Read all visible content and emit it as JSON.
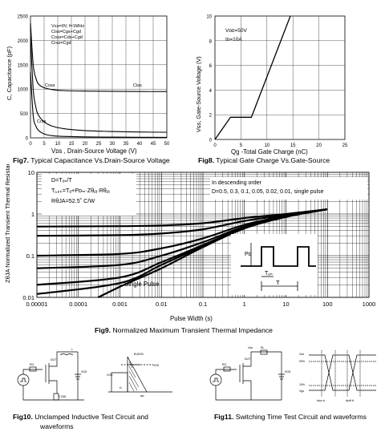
{
  "fig7": {
    "caption_num": "Fig7.",
    "caption_text": " Typical Capacitance Vs.Drain-Source Voltage",
    "ylabel": "C, Capacitance (pF)",
    "xlabel": "Vᴅs , Drain-Source Voltage (V)",
    "yticks": [
      "0",
      "500",
      "1000",
      "1500",
      "2000",
      "2500"
    ],
    "xticks": [
      "0",
      "5",
      "10",
      "15",
      "20",
      "25",
      "30",
      "35",
      "40",
      "45",
      "50"
    ],
    "legend": [
      "Vɢs=0V, f=1MHz",
      "Ciss=Cgs+Cgd",
      "Coss=Cds+Cgd",
      "Crss=Cgd"
    ],
    "series_labels": [
      "Ciss",
      "Coss",
      "Crss"
    ]
  },
  "fig8": {
    "caption_num": "Fig8.",
    "caption_text": " Typical Gate Charge Vs.Gate-Source",
    "ylabel": "Vɢs, Gate-Source Voltage (V)",
    "xlabel": "Qg -Total Gate Charge (nC)",
    "yticks": [
      "0",
      "2",
      "4",
      "6",
      "8",
      "10"
    ],
    "xticks": [
      "0",
      "5",
      "10",
      "15",
      "20",
      "25"
    ],
    "legend": [
      "Vᴅᴅ=50V",
      "Iᴅ=10A"
    ]
  },
  "fig9": {
    "caption_num": "Fig9.",
    "caption_text": " Normalized Maximum Transient Thermal Impedance",
    "ylabel": "ZθJA Normalized Transient Thermal Resistance)",
    "xlabel": "Pulse Width (s)",
    "yticks": [
      "10",
      "1",
      "0.1",
      "0.01"
    ],
    "xticks": [
      "0.00001",
      "0.0001",
      "0.001",
      "0.01",
      "0.1",
      "1",
      "10",
      "100",
      "1000"
    ],
    "notes_left": [
      "D=Tₒₙ/T",
      "Tⱼ,ₚₖ=Tₐ+Pᴅₘ·Zθⱼₐ·Rθⱼₐ",
      "RθJA=52.5˚ C/W"
    ],
    "notes_right": [
      "In descending order",
      "D=0.5, 0.3, 0.1, 0.05, 0.02, 0.01, single pulse"
    ],
    "single_pulse_label": "Single Pulse",
    "pulse_labels": [
      "Pᴅ",
      "Tₒₙ",
      "T"
    ]
  },
  "fig10": {
    "caption_num": "Fig10.",
    "caption_text": " Unclamped Inductive Test Circuit and",
    "caption_line2": "waveforms"
  },
  "fig11": {
    "caption_num": "Fig11.",
    "caption_text": " Switching Time Test Circuit and waveforms"
  },
  "chart_data": [
    {
      "type": "line",
      "title": "Fig7. Typical Capacitance Vs.Drain-Source Voltage",
      "xlabel": "Vᴅs , Drain-Source Voltage (V)",
      "ylabel": "C, Capacitance (pF)",
      "xlim": [
        0,
        50
      ],
      "ylim": [
        0,
        2500
      ],
      "series": [
        {
          "name": "Ciss",
          "x": [
            0,
            1,
            2,
            3,
            5,
            8,
            12,
            20,
            30,
            40,
            50
          ],
          "y": [
            2350,
            1500,
            1220,
            1100,
            1030,
            990,
            970,
            960,
            955,
            950,
            950
          ]
        },
        {
          "name": "Coss",
          "x": [
            0,
            1,
            2,
            3,
            5,
            8,
            12,
            20,
            30,
            40,
            50
          ],
          "y": [
            2050,
            1000,
            620,
            460,
            330,
            240,
            190,
            150,
            130,
            120,
            115
          ]
        },
        {
          "name": "Crss",
          "x": [
            0,
            1,
            2,
            3,
            5,
            8,
            12,
            20,
            30,
            40,
            50
          ],
          "y": [
            1350,
            450,
            240,
            150,
            80,
            45,
            30,
            20,
            15,
            12,
            10
          ]
        }
      ]
    },
    {
      "type": "line",
      "title": "Fig8. Typical Gate Charge Vs.Gate-Source",
      "xlabel": "Qg -Total Gate Charge (nC)",
      "ylabel": "Vɢs, Gate-Source Voltage (V)",
      "xlim": [
        0,
        25
      ],
      "ylim": [
        0,
        10
      ],
      "series": [
        {
          "x": [
            0,
            3,
            7,
            14.5
          ],
          "y": [
            0,
            1.8,
            1.8,
            10
          ]
        }
      ]
    },
    {
      "type": "line",
      "title": "Fig9. Normalized Maximum Transient Thermal Impedance",
      "xlabel": "Pulse Width (s)",
      "ylabel": "ZθJA Normalized Transient Thermal Resistance)",
      "log_x": true,
      "log_y": true,
      "xlim": [
        1e-05,
        1000
      ],
      "ylim": [
        0.01,
        10
      ],
      "series": [
        {
          "name": "D=0.5",
          "x": [
            1e-05,
            0.001,
            0.01,
            0.1,
            1,
            10,
            100
          ],
          "y": [
            0.5,
            0.51,
            0.53,
            0.6,
            0.8,
            1.0,
            1.3
          ]
        },
        {
          "name": "D=0.3",
          "x": [
            1e-05,
            0.001,
            0.01,
            0.1,
            1,
            10,
            100
          ],
          "y": [
            0.3,
            0.31,
            0.34,
            0.43,
            0.68,
            0.95,
            1.3
          ]
        },
        {
          "name": "D=0.1",
          "x": [
            1e-05,
            0.001,
            0.01,
            0.1,
            1,
            10,
            100
          ],
          "y": [
            0.1,
            0.11,
            0.15,
            0.26,
            0.55,
            0.9,
            1.3
          ]
        },
        {
          "name": "D=0.05",
          "x": [
            1e-05,
            0.001,
            0.01,
            0.1,
            1,
            10,
            100
          ],
          "y": [
            0.05,
            0.06,
            0.1,
            0.21,
            0.5,
            0.88,
            1.3
          ]
        },
        {
          "name": "D=0.02",
          "x": [
            1e-05,
            0.001,
            0.01,
            0.1,
            1,
            10,
            100
          ],
          "y": [
            0.02,
            0.03,
            0.07,
            0.18,
            0.47,
            0.87,
            1.3
          ]
        },
        {
          "name": "D=0.01",
          "x": [
            1e-05,
            0.001,
            0.01,
            0.1,
            1,
            10,
            100
          ],
          "y": [
            0.012,
            0.022,
            0.06,
            0.17,
            0.46,
            0.86,
            1.3
          ]
        },
        {
          "name": "single pulse",
          "x": [
            0.0003,
            0.001,
            0.01,
            0.1,
            1,
            10,
            100
          ],
          "y": [
            0.01,
            0.018,
            0.05,
            0.16,
            0.45,
            0.85,
            1.3
          ]
        }
      ]
    }
  ]
}
